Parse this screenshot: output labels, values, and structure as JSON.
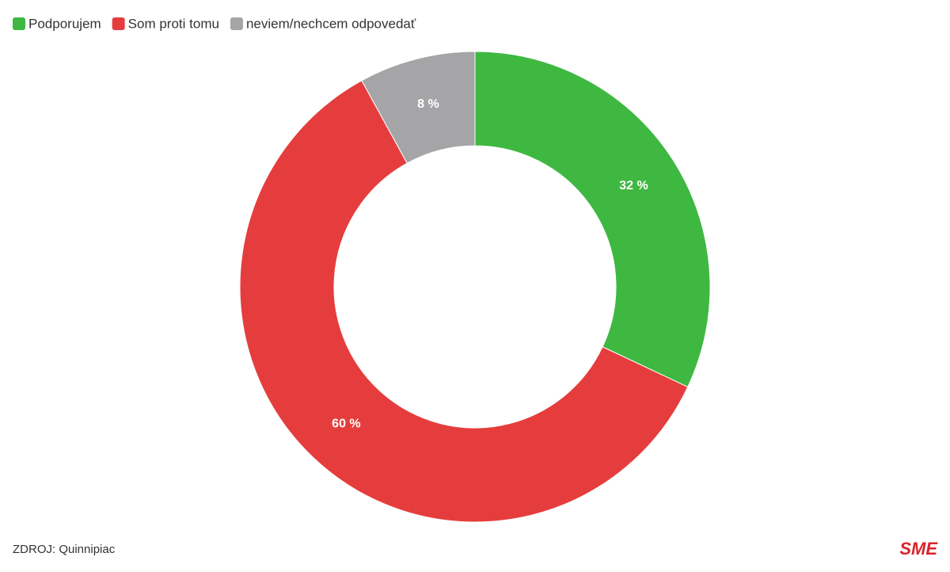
{
  "chart_data": {
    "type": "donut",
    "categories": [
      "Podporujem",
      "Som proti tomu",
      "neviem/nechcem odpovedať"
    ],
    "values": [
      32,
      60,
      8
    ],
    "value_labels": [
      "32 %",
      "60 %",
      "8 %"
    ],
    "colors": [
      "#3fb842",
      "#e53d3d",
      "#a5a5a7"
    ],
    "legend": "top-left"
  },
  "footer": {
    "source": "ZDROJ: Quinnipiac",
    "brand": "SME"
  }
}
